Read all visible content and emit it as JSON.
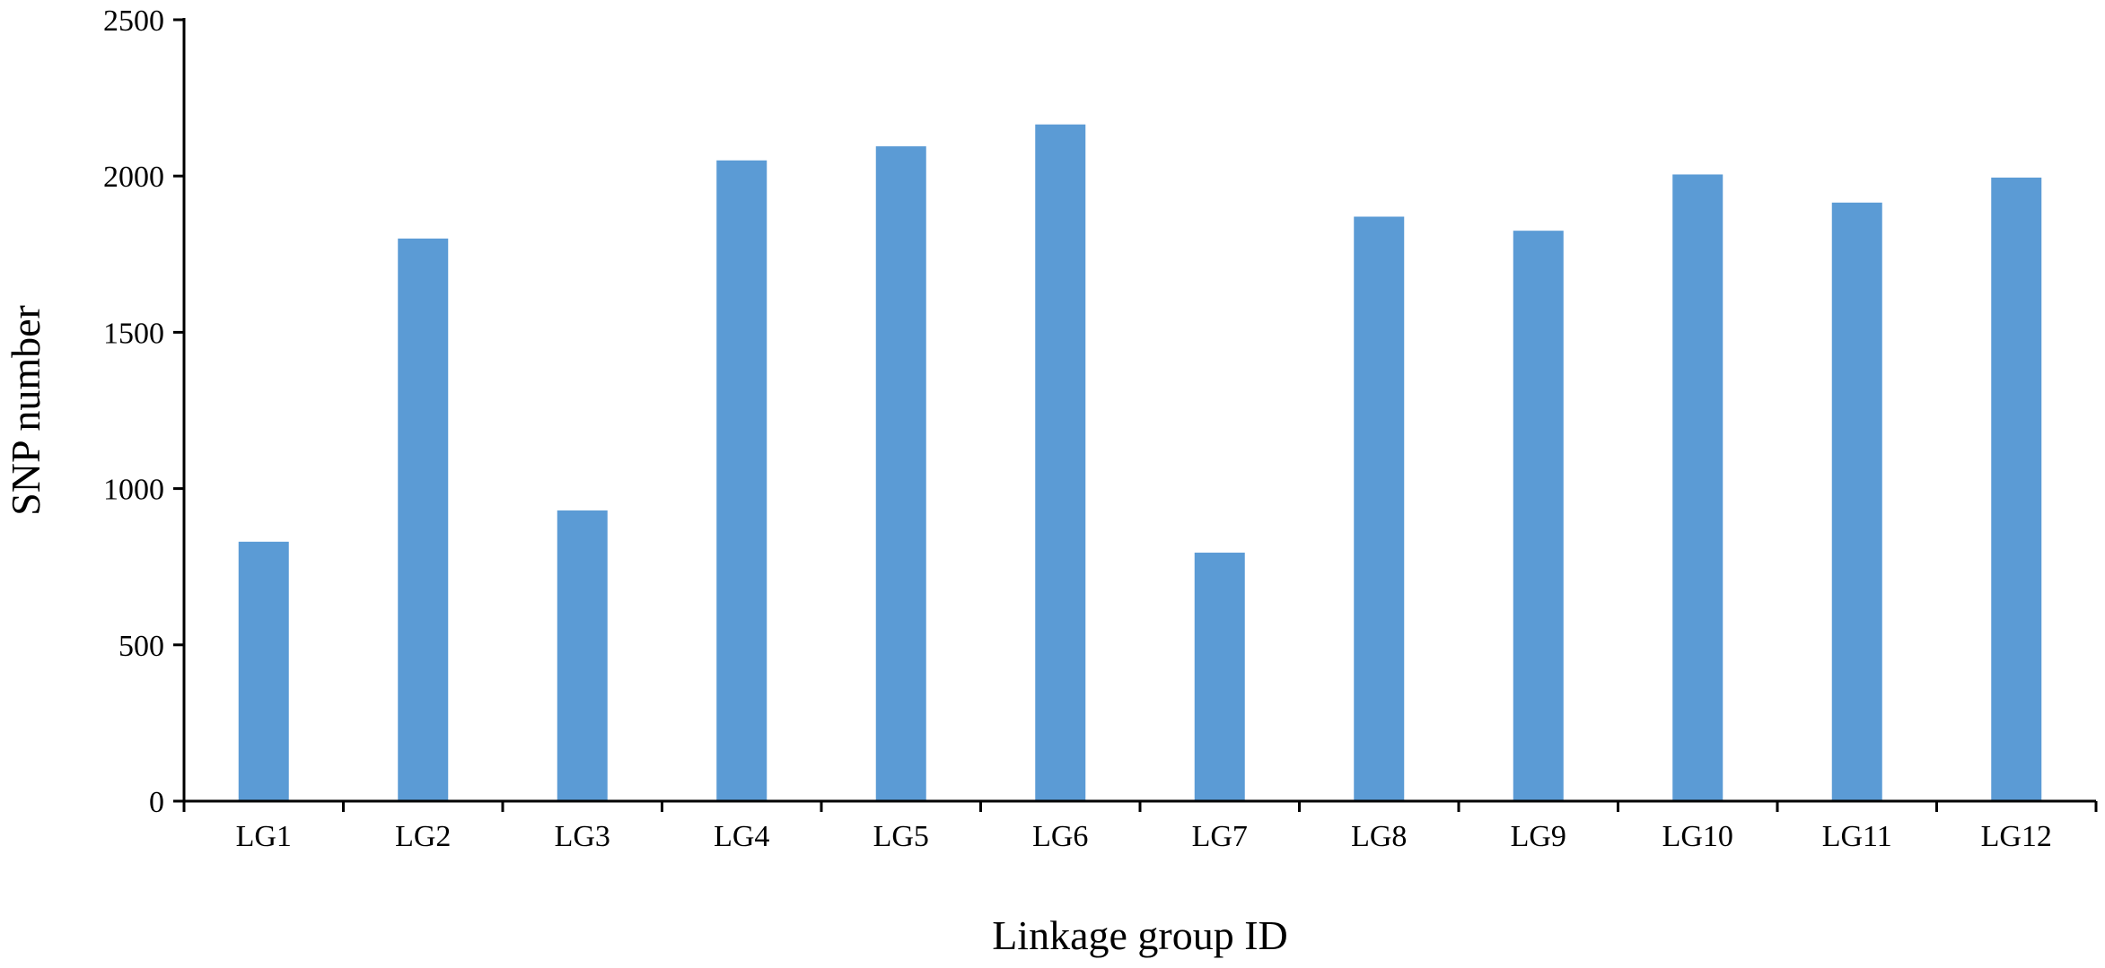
{
  "chart_data": {
    "type": "bar",
    "title": "",
    "xlabel": "Linkage group ID",
    "ylabel": "SNP number",
    "categories": [
      "LG1",
      "LG2",
      "LG3",
      "LG4",
      "LG5",
      "LG6",
      "LG7",
      "LG8",
      "LG9",
      "LG10",
      "LG11",
      "LG12"
    ],
    "values": [
      830,
      1800,
      930,
      2050,
      2095,
      2165,
      795,
      1870,
      1825,
      2005,
      1915,
      1995
    ],
    "ylim": [
      0,
      2500
    ],
    "yticks": [
      "0",
      "500",
      "1000",
      "1500",
      "2000",
      "2500"
    ],
    "grid": false,
    "legend": "none",
    "bar_color": "#5b9bd5",
    "axis_color": "#000000"
  }
}
